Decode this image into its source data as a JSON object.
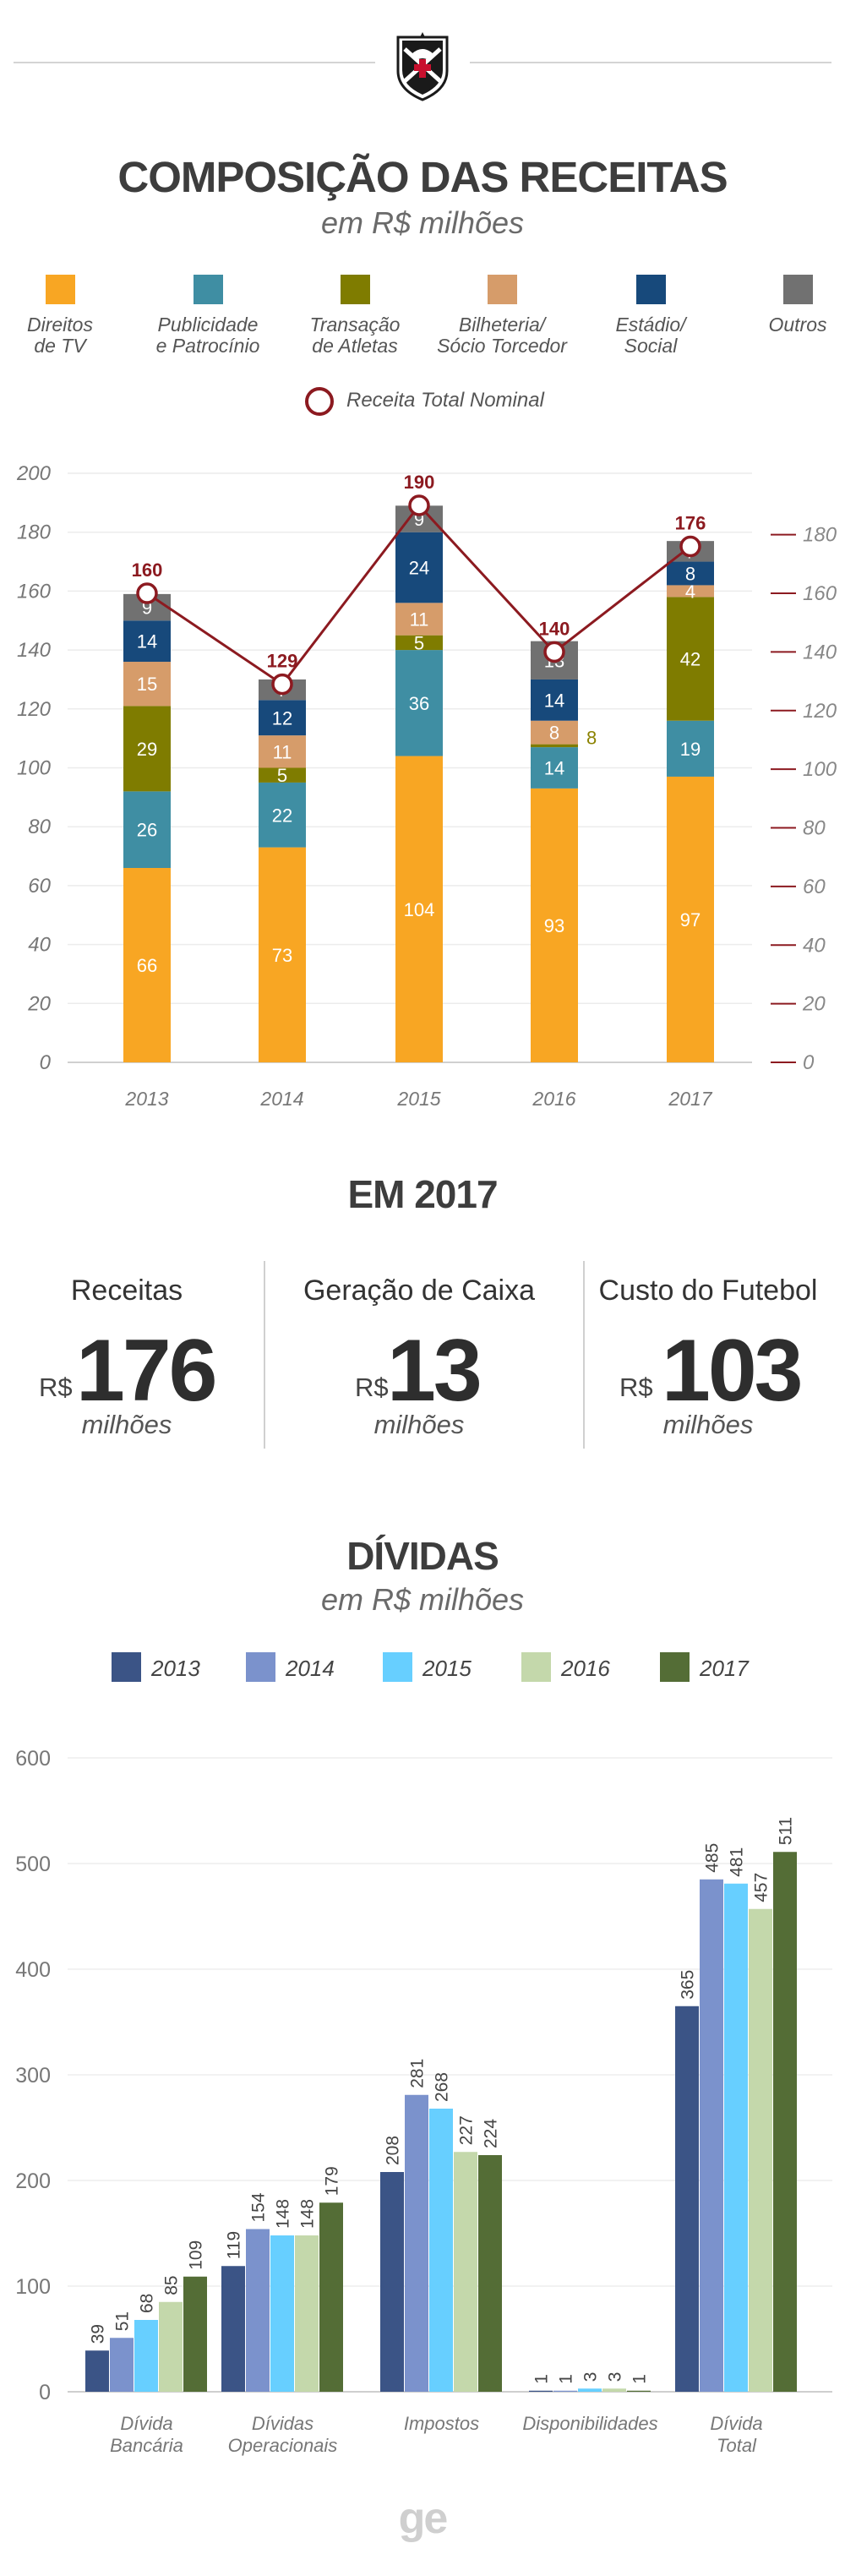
{
  "header": {
    "logo": "club-crest-icon"
  },
  "revenue": {
    "title": "COMPOSIÇÃO DAS RECEITAS",
    "subtitle": "em R$ milhões",
    "line_legend": "Receita Total Nominal"
  },
  "highlights": {
    "title": "EM 2017",
    "items": [
      {
        "label": "Receitas",
        "currency": "R$",
        "value": "176",
        "unit": "milhões"
      },
      {
        "label": "Geração de Caixa",
        "currency": "R$",
        "value": "13",
        "unit": "milhões"
      },
      {
        "label": "Custo do Futebol",
        "currency": "R$",
        "value": "103",
        "unit": "milhões"
      }
    ]
  },
  "debts": {
    "title": "DÍVIDAS",
    "subtitle": "em R$ milhões"
  },
  "footer": {
    "brand": "ge"
  },
  "colors": {
    "direitos": "#f8a623",
    "publicidade": "#3f8ea3",
    "transacao": "#7f7c00",
    "bilheteria": "#d69c6a",
    "estadio": "#17497b",
    "outros": "#717171",
    "line": "#8c1a20",
    "d2013": "#3b5486",
    "d2014": "#7b92cc",
    "d2015": "#67cfff",
    "d2016": "#c4d8ab",
    "d2017": "#546d36"
  },
  "chart_data": [
    {
      "type": "bar",
      "stacked": true,
      "categories": [
        "2013",
        "2014",
        "2015",
        "2016",
        "2017"
      ],
      "series": [
        {
          "name": "Direitos\nde TV",
          "key": "direitos",
          "values": [
            66,
            73,
            104,
            93,
            97
          ]
        },
        {
          "name": "Publicidade\ne Patrocínio",
          "key": "publicidade",
          "values": [
            26,
            22,
            36,
            14,
            19
          ]
        },
        {
          "name": "Transação\nde Atletas",
          "key": "transacao",
          "values": [
            29,
            5,
            5,
            1,
            42
          ]
        },
        {
          "name": "Bilheteria/\nSócio Torcedor",
          "key": "bilheteria",
          "values": [
            15,
            11,
            11,
            8,
            4
          ]
        },
        {
          "name": "Estádio/\nSocial",
          "key": "estadio",
          "values": [
            14,
            12,
            24,
            14,
            8
          ]
        },
        {
          "name": "Outros",
          "key": "outros",
          "values": [
            9,
            7,
            9,
            13,
            7
          ]
        }
      ],
      "hidden_value_labels": {
        "transacao": [
          3
        ]
      },
      "side_labels": [
        {
          "series": "bilheteria",
          "index": 3,
          "text": "8"
        }
      ],
      "line": {
        "name": "Receita Total Nominal",
        "values": [
          160,
          129,
          190,
          140,
          176
        ],
        "ylim": [
          0,
          190
        ],
        "yticks": [
          0,
          20,
          40,
          60,
          80,
          100,
          120,
          140,
          160,
          180
        ]
      },
      "ylim": [
        0,
        200
      ],
      "yticks": [
        0,
        20,
        40,
        60,
        80,
        100,
        120,
        140,
        160,
        180,
        200
      ],
      "grid": true,
      "legend": "top"
    },
    {
      "type": "bar",
      "categories": [
        "Dívida\nBancária",
        "Dívidas\nOperacionais",
        "Impostos",
        "Disponibilidades",
        "Dívida\nTotal"
      ],
      "series": [
        {
          "name": "2013",
          "key": "d2013",
          "values": [
            39,
            119,
            208,
            1,
            365
          ]
        },
        {
          "name": "2014",
          "key": "d2014",
          "values": [
            51,
            154,
            281,
            1,
            485
          ]
        },
        {
          "name": "2015",
          "key": "d2015",
          "values": [
            68,
            148,
            268,
            3,
            481
          ]
        },
        {
          "name": "2016",
          "key": "d2016",
          "values": [
            85,
            148,
            227,
            3,
            457
          ]
        },
        {
          "name": "2017",
          "key": "d2017",
          "values": [
            109,
            179,
            224,
            1,
            511
          ]
        }
      ],
      "ylim": [
        0,
        600
      ],
      "yticks": [
        0,
        100,
        200,
        300,
        400,
        500,
        600
      ],
      "grid": true,
      "legend": "top"
    }
  ]
}
